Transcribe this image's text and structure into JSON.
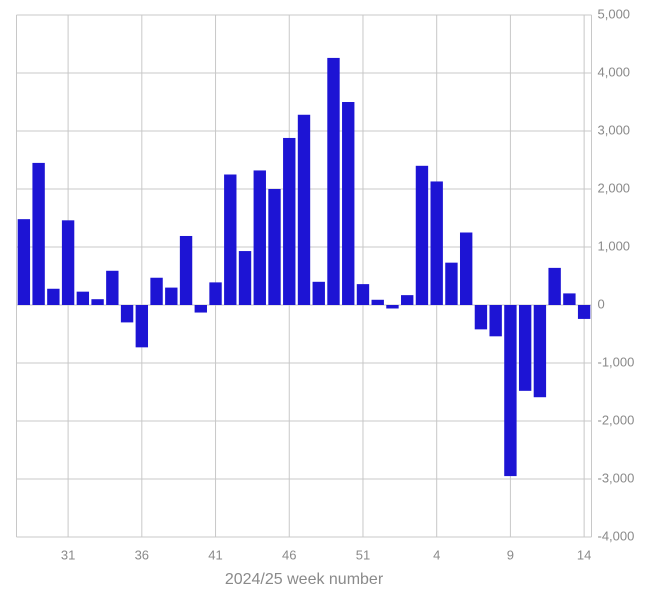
{
  "chart_data": {
    "type": "bar",
    "x_label": "2024/25 week number",
    "categories": [
      null,
      null,
      null,
      "31",
      null,
      null,
      null,
      null,
      "36",
      null,
      null,
      null,
      null,
      "41",
      null,
      null,
      null,
      null,
      "46",
      null,
      null,
      null,
      null,
      "51",
      null,
      null,
      null,
      null,
      "4",
      null,
      null,
      null,
      null,
      "9",
      null,
      null,
      null,
      null,
      "14"
    ],
    "values": [
      1480,
      2450,
      280,
      1460,
      230,
      100,
      590,
      -300,
      -730,
      470,
      300,
      1190,
      -130,
      390,
      2250,
      930,
      2320,
      2000,
      2880,
      3280,
      400,
      4260,
      3500,
      360,
      90,
      -60,
      170,
      2400,
      2130,
      730,
      1250,
      -420,
      -540,
      -2950,
      -1480,
      -1590,
      640,
      200,
      -240
    ],
    "color": "#1d14d4",
    "ylim": [
      -4000,
      5000
    ],
    "yticks": [
      {
        "value": -4000,
        "label": "-4,000"
      },
      {
        "value": -3000,
        "label": "-3,000"
      },
      {
        "value": -2000,
        "label": "-2,000"
      },
      {
        "value": -1000,
        "label": "-1,000"
      },
      0,
      {
        "value": 1000,
        "label": "1,000"
      },
      {
        "value": 2000,
        "label": "2,000"
      },
      {
        "value": 3000,
        "label": "3,000"
      },
      {
        "value": 4000,
        "label": "4,000"
      },
      {
        "value": 5000,
        "label": "5,000"
      }
    ],
    "y_axis_side": "right",
    "grid": true
  }
}
